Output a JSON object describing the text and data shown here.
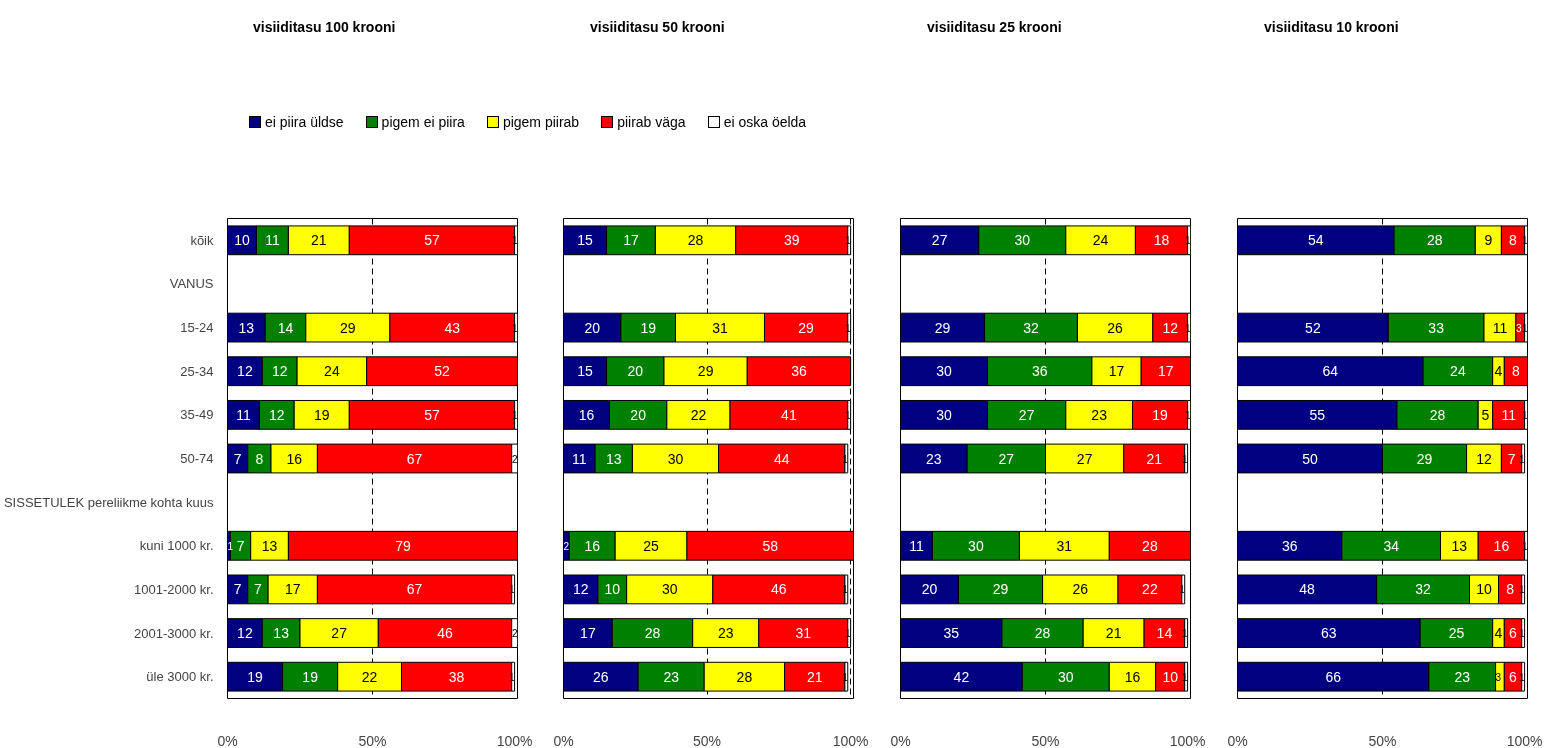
{
  "chart_data": [
    {
      "type": "bar",
      "orientation": "horizontal",
      "stacked": true,
      "title": "visiiditasu 100 krooni",
      "legend": "top",
      "grid": "x",
      "data_labels": true,
      "categories": [
        "kõik",
        "VANUS",
        "15-24",
        "25-34",
        "35-49",
        "50-74",
        "SISSETULEK pereliikme kohta kuus",
        "kuni 1000 kr.",
        "1001-2000 kr.",
        "2001-3000 kr.",
        "üle 3000 kr."
      ],
      "xlim": [
        0,
        100
      ],
      "xticks": [
        {
          "value": 0,
          "label": "0%"
        },
        {
          "value": 50,
          "label": "50%"
        },
        {
          "value": 100,
          "label": "100%"
        }
      ],
      "series": [
        {
          "name": "ei piira üldse",
          "color": "#000080",
          "values": [
            10,
            null,
            13,
            12,
            11,
            7,
            null,
            1,
            7,
            12,
            19
          ]
        },
        {
          "name": "pigem ei piira",
          "color": "#008000",
          "values": [
            11,
            null,
            14,
            12,
            12,
            8,
            null,
            7,
            7,
            13,
            19
          ]
        },
        {
          "name": "pigem piirab",
          "color": "#ffff00",
          "values": [
            21,
            null,
            29,
            24,
            19,
            16,
            null,
            13,
            17,
            27,
            22
          ]
        },
        {
          "name": "piirab väga",
          "color": "#ff0000",
          "values": [
            57,
            null,
            43,
            52,
            57,
            67,
            null,
            79,
            67,
            46,
            38
          ]
        },
        {
          "name": "ei oska öelda",
          "color": "#ffffff",
          "values": [
            1,
            null,
            1,
            null,
            1,
            2,
            null,
            null,
            1,
            2,
            1
          ]
        }
      ]
    },
    {
      "type": "bar",
      "orientation": "horizontal",
      "stacked": true,
      "title": "visiiditasu 50 krooni",
      "grid": "x",
      "data_labels": true,
      "tick_labels": "x",
      "categories": [
        null,
        null,
        null,
        null,
        null,
        null,
        null,
        null,
        null,
        null,
        null
      ],
      "xlim": [
        0,
        101
      ],
      "xticks": [
        {
          "value": 0,
          "label": "0%"
        },
        {
          "value": 50,
          "label": "50%"
        },
        {
          "value": 100,
          "label": "100%"
        }
      ],
      "series": [
        {
          "color": "#000080",
          "values": [
            15,
            null,
            20,
            15,
            16,
            11,
            null,
            2,
            12,
            17,
            26
          ]
        },
        {
          "color": "#008000",
          "values": [
            17,
            null,
            19,
            20,
            20,
            13,
            null,
            16,
            10,
            28,
            23
          ]
        },
        {
          "color": "#ffff00",
          "values": [
            28,
            null,
            31,
            29,
            22,
            30,
            null,
            25,
            30,
            23,
            28
          ]
        },
        {
          "color": "#ff0000",
          "values": [
            39,
            null,
            29,
            36,
            41,
            44,
            null,
            58,
            46,
            31,
            21
          ]
        },
        {
          "color": "#ffffff",
          "values": [
            1,
            null,
            1,
            null,
            1,
            1,
            null,
            null,
            1,
            1,
            1
          ]
        }
      ]
    },
    {
      "type": "bar",
      "orientation": "horizontal",
      "stacked": true,
      "title": "visiiditasu 25 krooni",
      "grid": "x",
      "data_labels": true,
      "tick_labels": "x",
      "categories": [
        null,
        null,
        null,
        null,
        null,
        null,
        null,
        null,
        null,
        null,
        null
      ],
      "xlim": [
        0,
        100
      ],
      "xticks": [
        {
          "value": 0,
          "label": "0%"
        },
        {
          "value": 50,
          "label": "50%"
        },
        {
          "value": 100,
          "label": "100%"
        }
      ],
      "series": [
        {
          "color": "#000080",
          "values": [
            27,
            null,
            29,
            30,
            30,
            23,
            null,
            11,
            20,
            35,
            42
          ]
        },
        {
          "color": "#008000",
          "values": [
            30,
            null,
            32,
            36,
            27,
            27,
            null,
            30,
            29,
            28,
            30
          ]
        },
        {
          "color": "#ffff00",
          "values": [
            24,
            null,
            26,
            17,
            23,
            27,
            null,
            31,
            26,
            21,
            16
          ]
        },
        {
          "color": "#ff0000",
          "values": [
            18,
            null,
            12,
            17,
            19,
            21,
            null,
            28,
            22,
            14,
            10
          ]
        },
        {
          "color": "#ffffff",
          "values": [
            1,
            null,
            1,
            null,
            1,
            1,
            null,
            null,
            1,
            1,
            1
          ]
        }
      ]
    },
    {
      "type": "bar",
      "orientation": "horizontal",
      "stacked": true,
      "title": "visiiditasu 10 krooni",
      "grid": "x",
      "data_labels": true,
      "tick_labels": "x",
      "categories": [
        null,
        null,
        null,
        null,
        null,
        null,
        null,
        null,
        null,
        null,
        null
      ],
      "xlim": [
        0,
        100
      ],
      "xticks": [
        {
          "value": 0,
          "label": "0%"
        },
        {
          "value": 50,
          "label": "50%"
        },
        {
          "value": 100,
          "label": "100%"
        }
      ],
      "series": [
        {
          "color": "#000080",
          "values": [
            54,
            null,
            52,
            64,
            55,
            50,
            null,
            36,
            48,
            63,
            66
          ]
        },
        {
          "color": "#008000",
          "values": [
            28,
            null,
            33,
            24,
            28,
            29,
            null,
            34,
            32,
            25,
            23
          ]
        },
        {
          "color": "#ffff00",
          "values": [
            9,
            null,
            11,
            4,
            5,
            12,
            null,
            13,
            10,
            4,
            3
          ]
        },
        {
          "color": "#ff0000",
          "values": [
            8,
            null,
            3,
            8,
            11,
            7,
            null,
            16,
            8,
            6,
            6
          ]
        },
        {
          "color": "#ffffff",
          "values": [
            1,
            null,
            1,
            null,
            1,
            1,
            null,
            1,
            1,
            1,
            1
          ]
        }
      ]
    }
  ]
}
